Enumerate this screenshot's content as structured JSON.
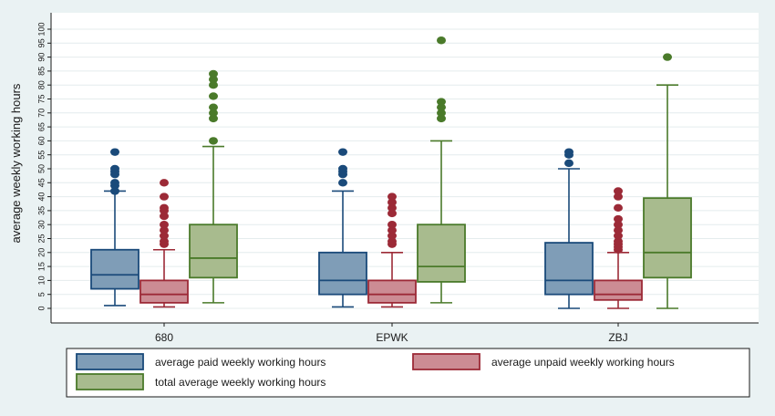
{
  "chart_data": {
    "type": "boxplot",
    "ylabel": "average weekly working hours",
    "ylim": [
      0,
      100
    ],
    "yticks": [
      0,
      5,
      10,
      15,
      20,
      25,
      30,
      35,
      40,
      45,
      50,
      55,
      60,
      65,
      70,
      75,
      80,
      85,
      90,
      95,
      100
    ],
    "grid": true,
    "categories": [
      "680",
      "EPWK",
      "ZBJ"
    ],
    "series": [
      {
        "name": "average paid weekly working hours",
        "color": "#7f9db7",
        "edge": "#1a4a7a",
        "boxes": [
          {
            "whisker_low": 1,
            "q1": 7,
            "median": 12,
            "q3": 21,
            "whisker_high": 42,
            "outliers": [
              42,
              44,
              45,
              48,
              49,
              50,
              56
            ]
          },
          {
            "whisker_low": 0.5,
            "q1": 5,
            "median": 10,
            "q3": 20,
            "whisker_high": 42,
            "outliers": [
              45,
              48,
              49,
              50,
              56
            ]
          },
          {
            "whisker_low": 0,
            "q1": 5,
            "median": 10,
            "q3": 23.5,
            "whisker_high": 50,
            "outliers": [
              52,
              55,
              56
            ]
          }
        ]
      },
      {
        "name": "average unpaid weekly working hours",
        "color": "#cc8c94",
        "edge": "#9c2a37",
        "boxes": [
          {
            "whisker_low": 0.5,
            "q1": 2,
            "median": 5,
            "q3": 10,
            "whisker_high": 21,
            "outliers": [
              23,
              24,
              26,
              28,
              30,
              33,
              35,
              36,
              40,
              45
            ]
          },
          {
            "whisker_low": 0.5,
            "q1": 2,
            "median": 5,
            "q3": 10,
            "whisker_high": 20,
            "outliers": [
              23,
              24,
              26,
              28,
              30,
              34,
              36,
              38,
              40
            ]
          },
          {
            "whisker_low": 0,
            "q1": 3,
            "median": 5,
            "q3": 10,
            "whisker_high": 20,
            "outliers": [
              21,
              22,
              23,
              24,
              26,
              28,
              30,
              32,
              36,
              40,
              42
            ]
          }
        ]
      },
      {
        "name": "total average weekly working hours",
        "color": "#a8bb8e",
        "edge": "#4a7a2a",
        "boxes": [
          {
            "whisker_low": 2,
            "q1": 11,
            "median": 18,
            "q3": 30,
            "whisker_high": 58,
            "outliers": [
              60,
              68,
              70,
              72,
              76,
              80,
              82,
              84
            ]
          },
          {
            "whisker_low": 2,
            "q1": 9.5,
            "median": 15,
            "q3": 30,
            "whisker_high": 60,
            "outliers": [
              68,
              70,
              72,
              74,
              96
            ]
          },
          {
            "whisker_low": 0,
            "q1": 11,
            "median": 20,
            "q3": 39.5,
            "whisker_high": 80,
            "outliers": [
              90
            ]
          }
        ]
      }
    ],
    "legend": "bottom"
  }
}
